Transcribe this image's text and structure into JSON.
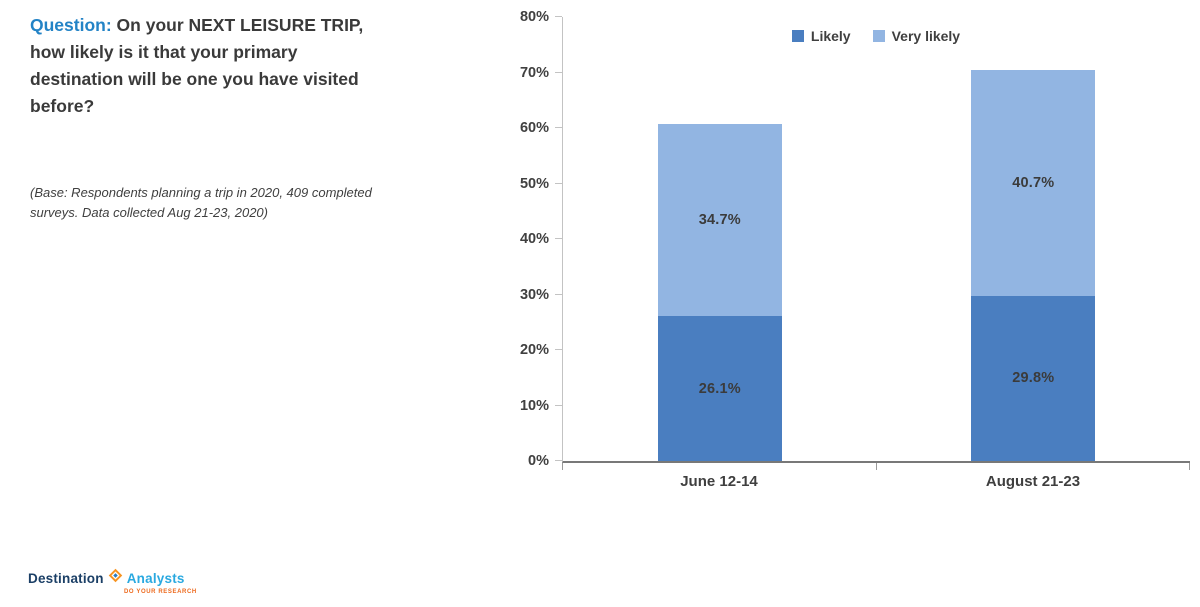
{
  "question": {
    "label": "Question:",
    "text": "On your NEXT LEISURE TRIP, how likely is it that your primary destination will be one you have visited before?",
    "base_note": "(Base: Respondents planning a trip in 2020, 409 completed surveys. Data collected Aug 21-23, 2020)"
  },
  "logo": {
    "word1": "Destination",
    "word2": "Analysts",
    "tagline": "DO YOUR RESEARCH"
  },
  "chart_data": {
    "type": "bar",
    "stacked": true,
    "title": "",
    "categories": [
      "June 12-14",
      "August 21-23"
    ],
    "series": [
      {
        "name": "Likely",
        "color": "#4a7ec0",
        "values": [
          26.1,
          29.8
        ]
      },
      {
        "name": "Very likely",
        "color": "#92b5e2",
        "values": [
          34.7,
          40.7
        ]
      }
    ],
    "ylim": [
      0,
      80
    ],
    "ytick_step": 10,
    "ytick_format": "percent",
    "legend_position": "top-center",
    "grid": false,
    "label_color": "#3b3b3b"
  }
}
